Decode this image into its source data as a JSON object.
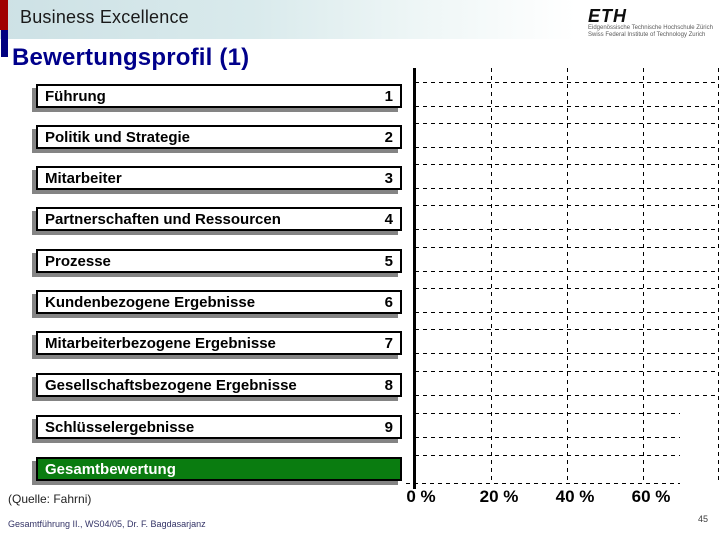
{
  "header": {
    "title": "Business Excellence"
  },
  "logo": {
    "wordmark": "ETH",
    "line1": "Eidgenössische Technische Hochschule Zürich",
    "line2": "Swiss Federal Institute of Technology Zurich"
  },
  "title": "Bewertungsprofil (1)",
  "chart_data": {
    "type": "bar",
    "orientation": "horizontal",
    "title": "Bewertungsprofil (1)",
    "categories": [
      "Führung",
      "Politik und Strategie",
      "Mitarbeiter",
      "Partnerschaften und Ressourcen",
      "Prozesse",
      "Kundenbezogene Ergebnisse",
      "Mitarbeiterbezogene Ergebnisse",
      "Gesellschaftsbezogene Ergebnisse",
      "Schlüsselergebnisse"
    ],
    "category_numbers": [
      "1",
      "2",
      "3",
      "4",
      "5",
      "6",
      "7",
      "8",
      "9"
    ],
    "values": [],
    "note": "Empty assessment profile template – no bar values are drawn, only dashed gridlines",
    "total_row_label": "Gesamtbewertung",
    "x_axis": {
      "tick_labels": [
        "0 %",
        "20 %",
        "40 %",
        "60 %"
      ],
      "min_percent": 0,
      "max_percent": 80,
      "gridlines": "dashed"
    },
    "legend": "none",
    "grid": true
  },
  "footer": {
    "source": "(Quelle: Fahrni)",
    "course": "Gesamtführung II., WS04/05, Dr. F. Bagdasarjanz",
    "page": "45"
  },
  "colors": {
    "accent_red": "#a00000",
    "accent_blue": "#000080",
    "title_navy": "#00008b",
    "total_green": "#0a7c10",
    "header_band": "#cde1e5",
    "shadow_gray": "#848484"
  }
}
